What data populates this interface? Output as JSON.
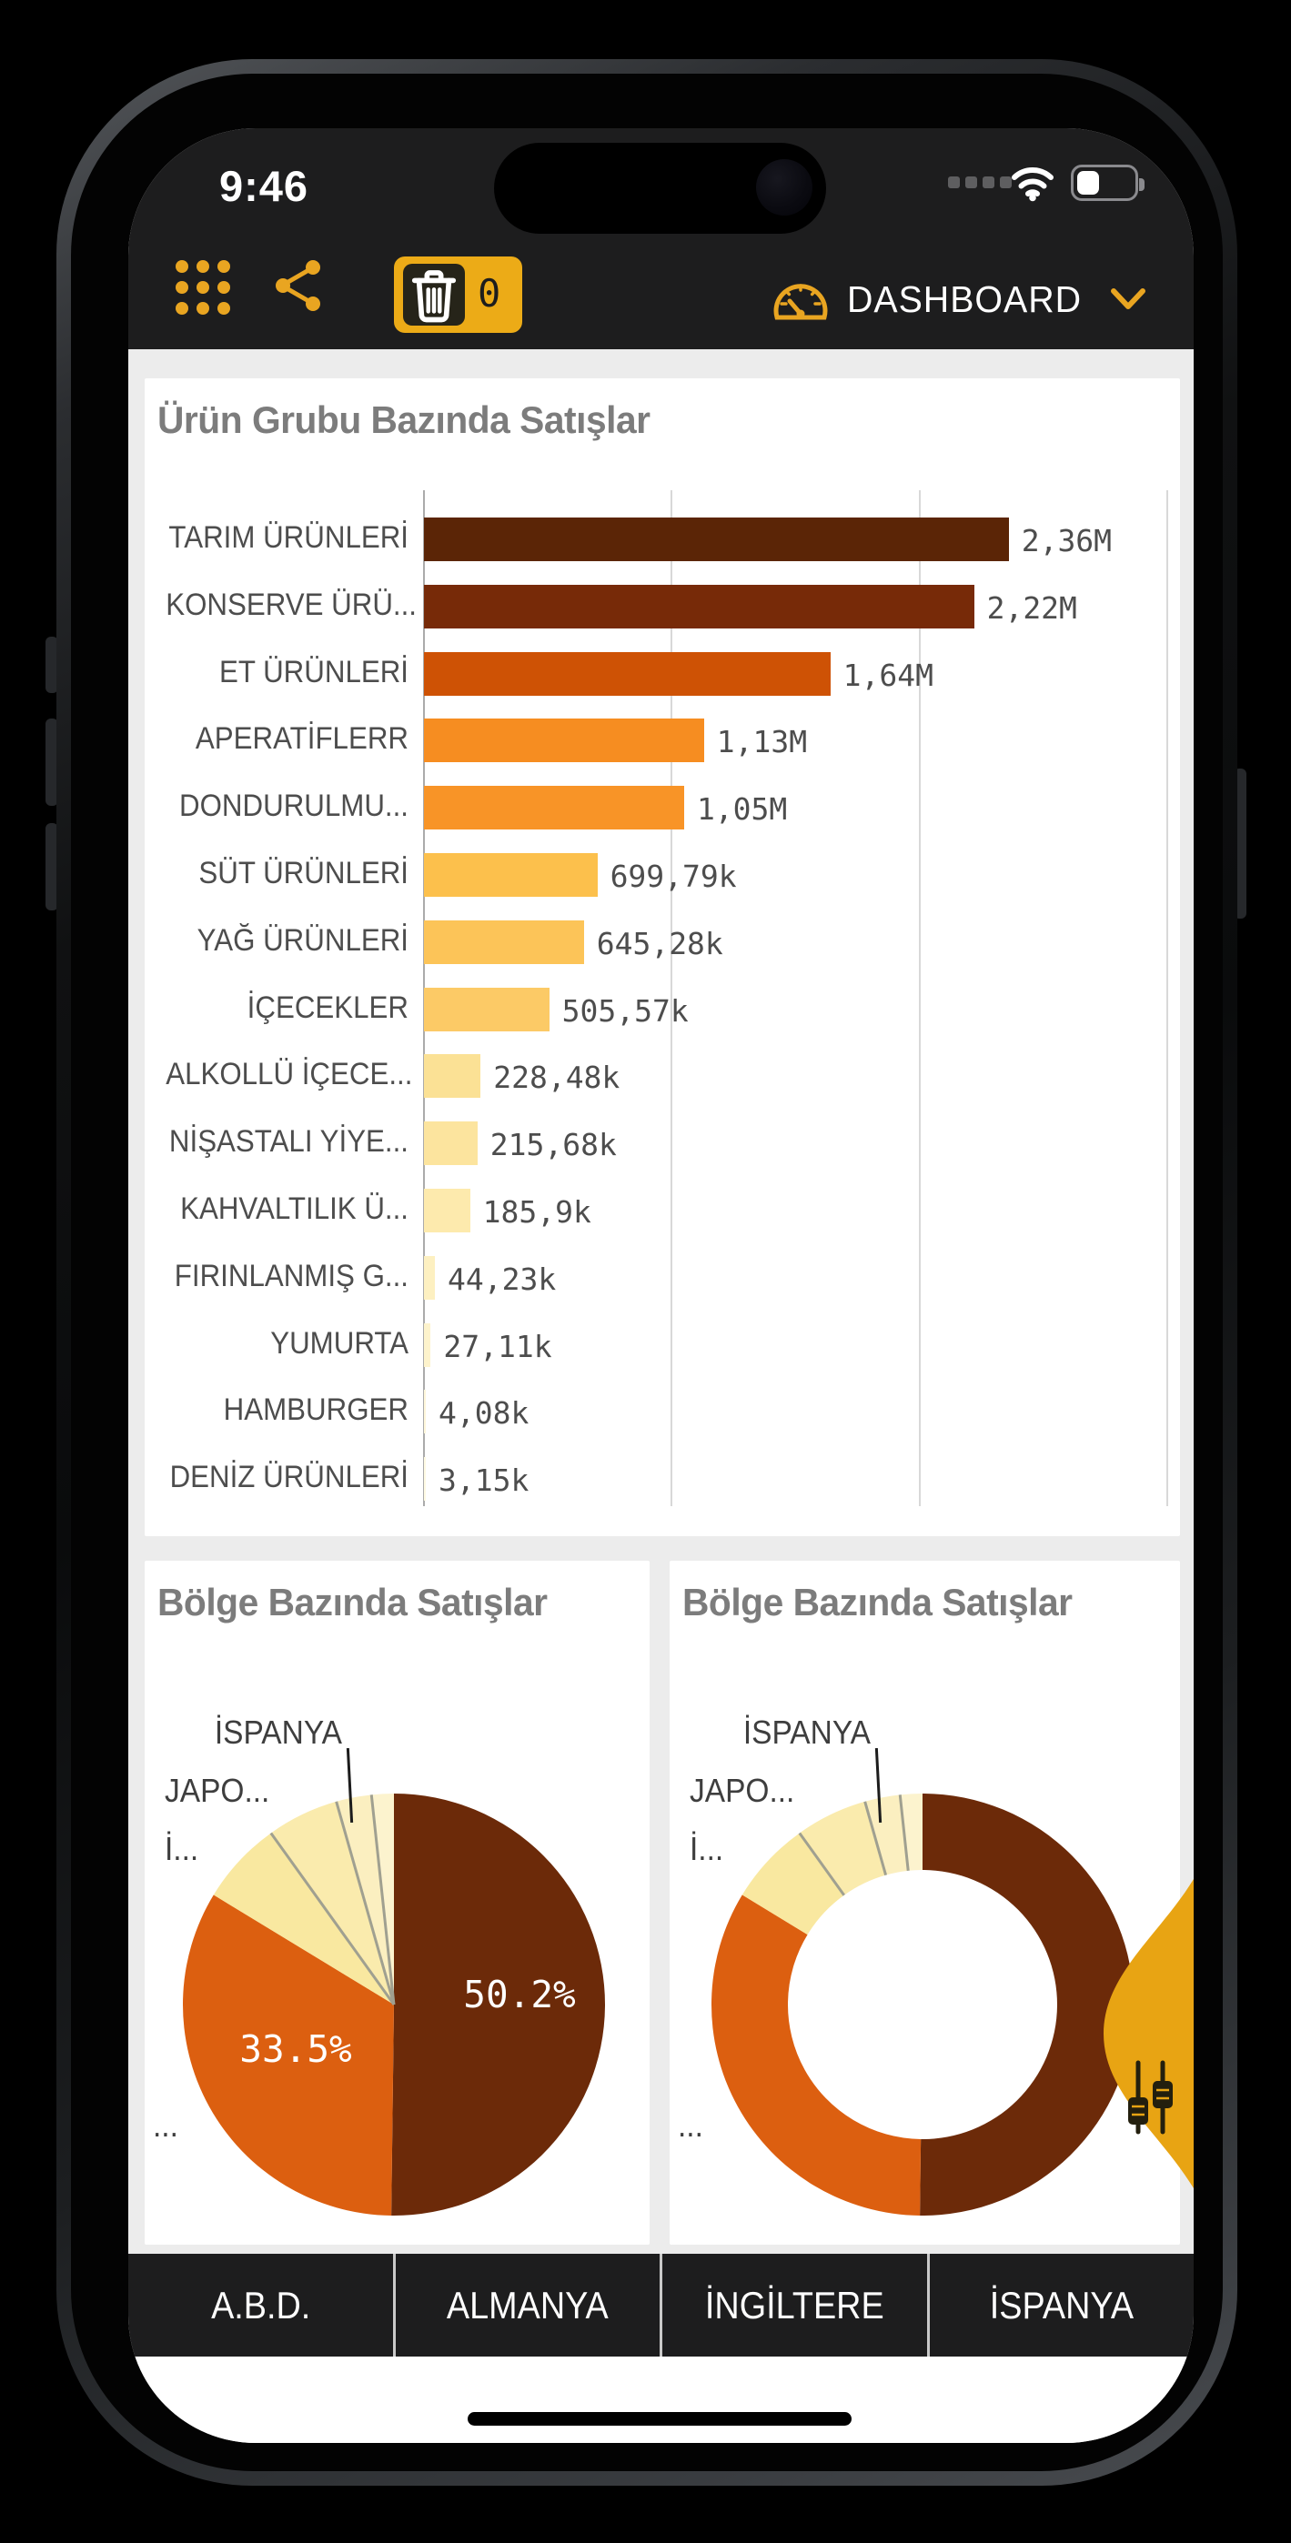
{
  "status": {
    "time": "9:46"
  },
  "header": {
    "dashboard_label": "DASHBOARD",
    "trash_count": "0"
  },
  "icons": {
    "menu": "grid-menu-icon",
    "share": "share-icon",
    "trash": "trash-icon",
    "gauge": "gauge-icon",
    "chevron": "chevron-down-icon",
    "wifi": "wifi-icon",
    "battery": "battery-icon",
    "filter_handle": "filter-sliders-icon"
  },
  "colors": {
    "accent_amber": "#E9A521",
    "header_bg": "#1D1D1E",
    "content_bg": "#ECECEC",
    "pie_brown": "#6C2A09",
    "pie_orange": "#DC5F10"
  },
  "chart_data": [
    {
      "type": "bar",
      "title": "Ürün Grubu Bazında Satışlar",
      "orientation": "horizontal",
      "categories": [
        "TARIM ÜRÜNLERİ",
        "KONSERVE ÜRÜ...",
        "ET ÜRÜNLERİ",
        "APERATİFLERR",
        "DONDURULMU...",
        "SÜT ÜRÜNLERİ",
        "YAĞ ÜRÜNLERİ",
        "İÇECEKLER",
        "ALKOLLÜ İÇECE...",
        "NİŞASTALI YİYE...",
        "KAHVALTILIK Ü...",
        "FIRINLANMIŞ G...",
        "YUMURTA",
        "HAMBURGER",
        "DENİZ ÜRÜNLERİ"
      ],
      "values": [
        2360000,
        2220000,
        1640000,
        1130000,
        1050000,
        699790,
        645280,
        505570,
        228480,
        215680,
        185900,
        44230,
        27110,
        4080,
        3150
      ],
      "value_labels": [
        "2,36M",
        "2,22M",
        "1,64M",
        "1,13M",
        "1,05M",
        "699,79k",
        "645,28k",
        "505,57k",
        "228,48k",
        "215,68k",
        "185,9k",
        "44,23k",
        "27,11k",
        "4,08k",
        "3,15k"
      ],
      "bar_colors": [
        "#5B2506",
        "#772A08",
        "#CE5205",
        "#F68D21",
        "#F89427",
        "#FCC04C",
        "#FCC458",
        "#FCCA66",
        "#FBE195",
        "#FCE49E",
        "#FDEAAD",
        "#FDF0C1",
        "#FDF3CC",
        "#FEF7DA",
        "#FEFAE3"
      ],
      "xlim": [
        0,
        3000000
      ],
      "gridline_interval": 1000000,
      "grid": true
    },
    {
      "type": "pie",
      "title": "Bölge Bazında Satışlar",
      "slice_pcts": [
        50.2,
        33.5,
        6.4,
        5.5,
        2.7,
        1.7
      ],
      "slice_colors": [
        "#6C2A09",
        "#DC5F10",
        "#F9E8A0",
        "#FAEBAD",
        "#FBEFC0",
        "#FCF3CE"
      ],
      "percent_labels": [
        "50.2%",
        "33.5%"
      ],
      "outer_labels": [
        "İSPANYA",
        "JAPO...",
        "İ...",
        "..."
      ]
    },
    {
      "type": "pie",
      "title": "Bölge Bazında Satışlar",
      "donut": true,
      "slice_pcts": [
        50.2,
        33.5,
        6.4,
        5.5,
        2.7,
        1.7
      ],
      "slice_colors": [
        "#6C2A09",
        "#DC5F10",
        "#F9E8A0",
        "#FAEBAD",
        "#FBEFC0",
        "#FCF3CE"
      ],
      "percent_labels": [],
      "outer_labels": [
        "İSPANYA",
        "JAPO...",
        "İ...",
        "..."
      ]
    }
  ],
  "tab_bar": {
    "items": [
      "A.B.D.",
      "ALMANYA",
      "İNGİLTERE",
      "İSPANYA"
    ]
  }
}
